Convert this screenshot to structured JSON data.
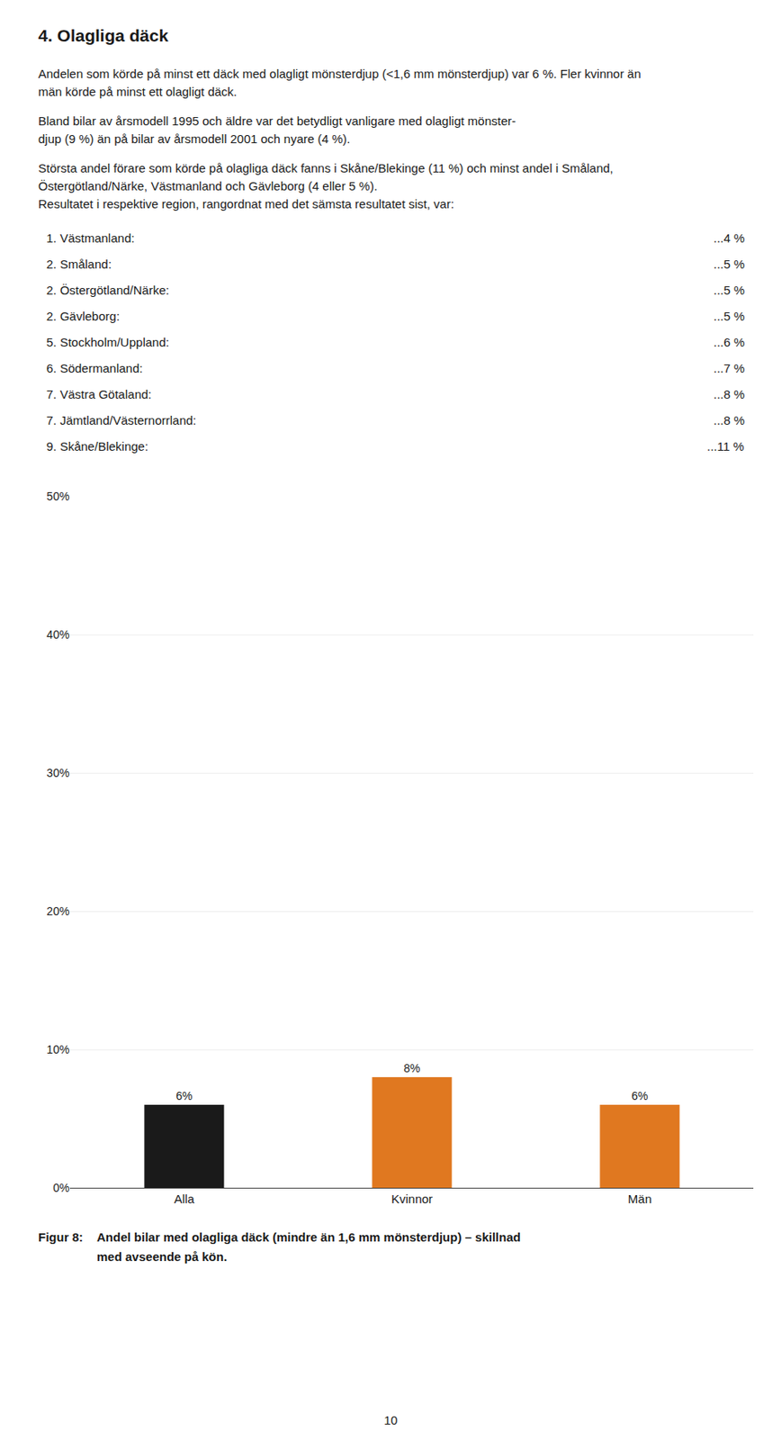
{
  "chart_data": {
    "type": "bar",
    "title": "4. Olagliga däck",
    "categories": [
      "Alla",
      "Kvinnor",
      "Män"
    ],
    "values": [
      6,
      8,
      6
    ],
    "colors": [
      "#1a1a1a",
      "#e07820",
      "#e07820"
    ],
    "data_labels": true,
    "value_labels": [
      "6%",
      "8%",
      "6%"
    ],
    "ylim": [
      0,
      50
    ],
    "yticks": [
      {
        "value": 0,
        "label": "0%"
      },
      {
        "value": 10,
        "label": "10%"
      },
      {
        "value": 20,
        "label": "20%"
      },
      {
        "value": 30,
        "label": "30%"
      },
      {
        "value": 40,
        "label": "40%"
      },
      {
        "value": 50,
        "label": "50%"
      }
    ],
    "grid": true,
    "annotations": {
      "paragraphs": [
        "Andelen som körde på minst ett däck med olagligt mönsterdjup (<1,6 mm mönsterdjup) var 6 %. Fler kvinnor än män körde på minst ett olagligt däck.",
        "Bland bilar av årsmodell 1995 och äldre var det betydligt vanligare med olagligt mönster-\ndjup (9 %) än på bilar av årsmodell 2001 och nyare (4 %).",
        "Största andel förare som körde på olagliga däck fanns i Skåne/Blekinge (11 %) och minst andel i Småland, Östergötland/Närke, Västmanland och Gävleborg (4 eller 5 %).\nResultatet i respektive region, rangordnat med det sämsta resultatet sist, var:"
      ],
      "list": [
        [
          "1. Västmanland:",
          "...4 %"
        ],
        [
          "2. Småland:",
          "...5 %"
        ],
        [
          "2. Östergötland/Närke:",
          "...5 %"
        ],
        [
          "2. Gävleborg:",
          "...5 %"
        ],
        [
          "5. Stockholm/Uppland:",
          "...6 %"
        ],
        [
          "6. Södermanland:",
          "...7 %"
        ],
        [
          "7. Västra Götaland:",
          "...8 %"
        ],
        [
          "7. Jämtland/Västernorrland:",
          "...8 %"
        ],
        [
          "9. Skåne/Blekinge:",
          "...11 %"
        ]
      ],
      "caption": [
        "Figur 8:",
        "Andel bilar med olagliga däck (mindre än 1,6 mm mönsterdjup) – skillnad",
        "med avseende på kön."
      ],
      "page": "10"
    }
  }
}
